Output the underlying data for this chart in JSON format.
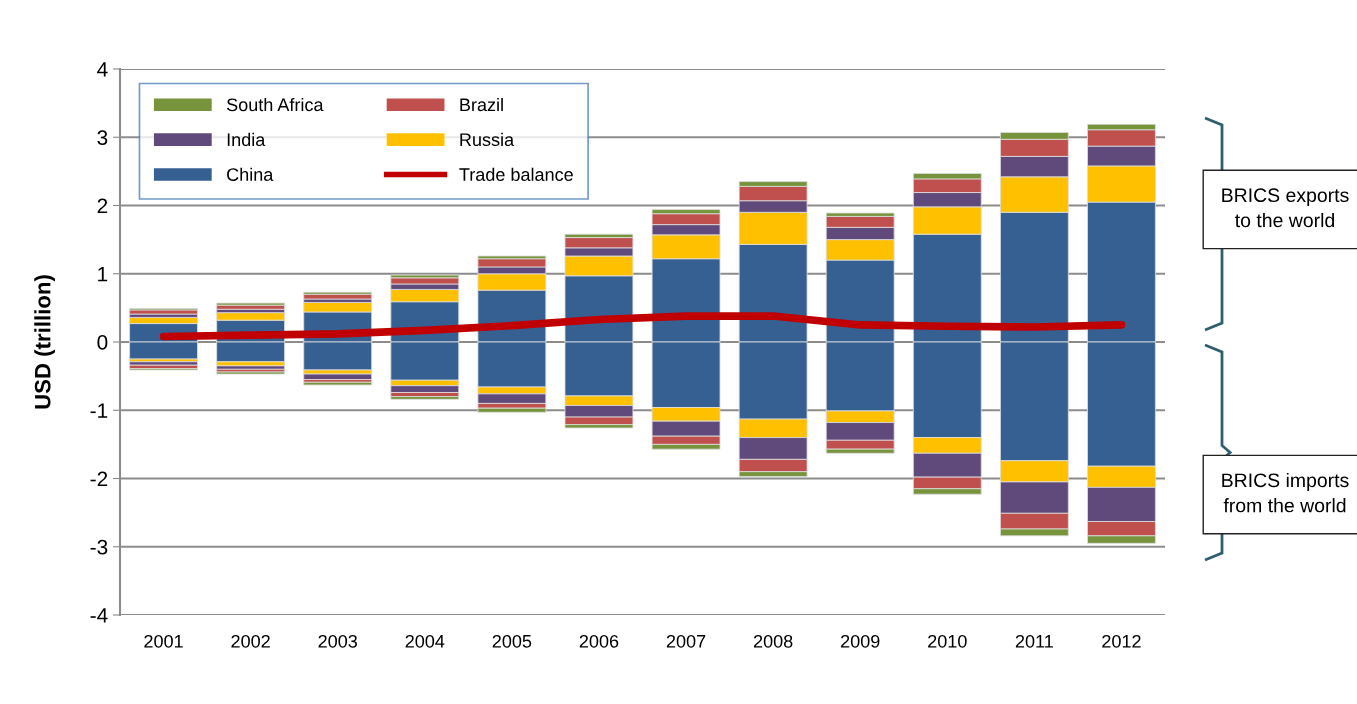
{
  "chart_data": {
    "type": "bar",
    "stacked": true,
    "ylabel": "USD (trillion)",
    "categories": [
      "2001",
      "2002",
      "2003",
      "2004",
      "2005",
      "2006",
      "2007",
      "2008",
      "2009",
      "2010",
      "2011",
      "2012"
    ],
    "series": [
      {
        "name": "China",
        "color": "#366092",
        "values": [
          0.27,
          0.32,
          0.44,
          0.59,
          0.76,
          0.97,
          1.22,
          1.43,
          1.2,
          1.58,
          1.9,
          2.05
        ]
      },
      {
        "name": "Russia",
        "color": "#ffc000",
        "values": [
          0.09,
          0.11,
          0.14,
          0.18,
          0.24,
          0.29,
          0.35,
          0.47,
          0.3,
          0.4,
          0.52,
          0.53
        ]
      },
      {
        "name": "India",
        "color": "#604a7b",
        "values": [
          0.05,
          0.05,
          0.05,
          0.08,
          0.1,
          0.12,
          0.15,
          0.17,
          0.18,
          0.21,
          0.3,
          0.29
        ]
      },
      {
        "name": "Brazil",
        "color": "#c0504d",
        "values": [
          0.06,
          0.06,
          0.07,
          0.09,
          0.12,
          0.15,
          0.16,
          0.21,
          0.16,
          0.2,
          0.25,
          0.24
        ]
      },
      {
        "name": "South Africa",
        "color": "#77933c",
        "values": [
          0.02,
          0.03,
          0.03,
          0.04,
          0.04,
          0.05,
          0.06,
          0.07,
          0.05,
          0.08,
          0.1,
          0.08
        ]
      },
      {
        "color": "#366092",
        "values": [
          -0.25,
          -0.29,
          -0.41,
          -0.56,
          -0.66,
          -0.79,
          -0.96,
          -1.13,
          -1.01,
          -1.4,
          -1.74,
          -1.82
        ]
      },
      {
        "color": "#ffc000",
        "values": [
          -0.04,
          -0.06,
          -0.06,
          -0.08,
          -0.1,
          -0.14,
          -0.2,
          -0.27,
          -0.17,
          -0.23,
          -0.31,
          -0.31
        ]
      },
      {
        "color": "#604a7b",
        "values": [
          -0.05,
          -0.05,
          -0.08,
          -0.1,
          -0.14,
          -0.17,
          -0.22,
          -0.32,
          -0.26,
          -0.35,
          -0.46,
          -0.5
        ]
      },
      {
        "color": "#c0504d",
        "values": [
          -0.05,
          -0.04,
          -0.04,
          -0.06,
          -0.07,
          -0.11,
          -0.12,
          -0.18,
          -0.13,
          -0.17,
          -0.23,
          -0.21
        ]
      },
      {
        "color": "#77933c",
        "values": [
          -0.02,
          -0.03,
          -0.04,
          -0.04,
          -0.06,
          -0.05,
          -0.07,
          -0.07,
          -0.06,
          -0.08,
          -0.1,
          -0.11
        ]
      },
      {
        "name": "Trade balance",
        "type": "line",
        "color": "#c00000",
        "values": [
          0.08,
          0.1,
          0.12,
          0.17,
          0.24,
          0.33,
          0.38,
          0.38,
          0.25,
          0.23,
          0.22,
          0.25
        ]
      }
    ],
    "ylim": [
      -4,
      4
    ],
    "yticks": [
      -4,
      -3,
      -2,
      -1,
      0,
      1,
      2,
      3,
      4
    ],
    "grid": "y",
    "legend": "top left",
    "annotations": [
      "BRICS exports to the world",
      "BRICS imports from the world"
    ]
  }
}
